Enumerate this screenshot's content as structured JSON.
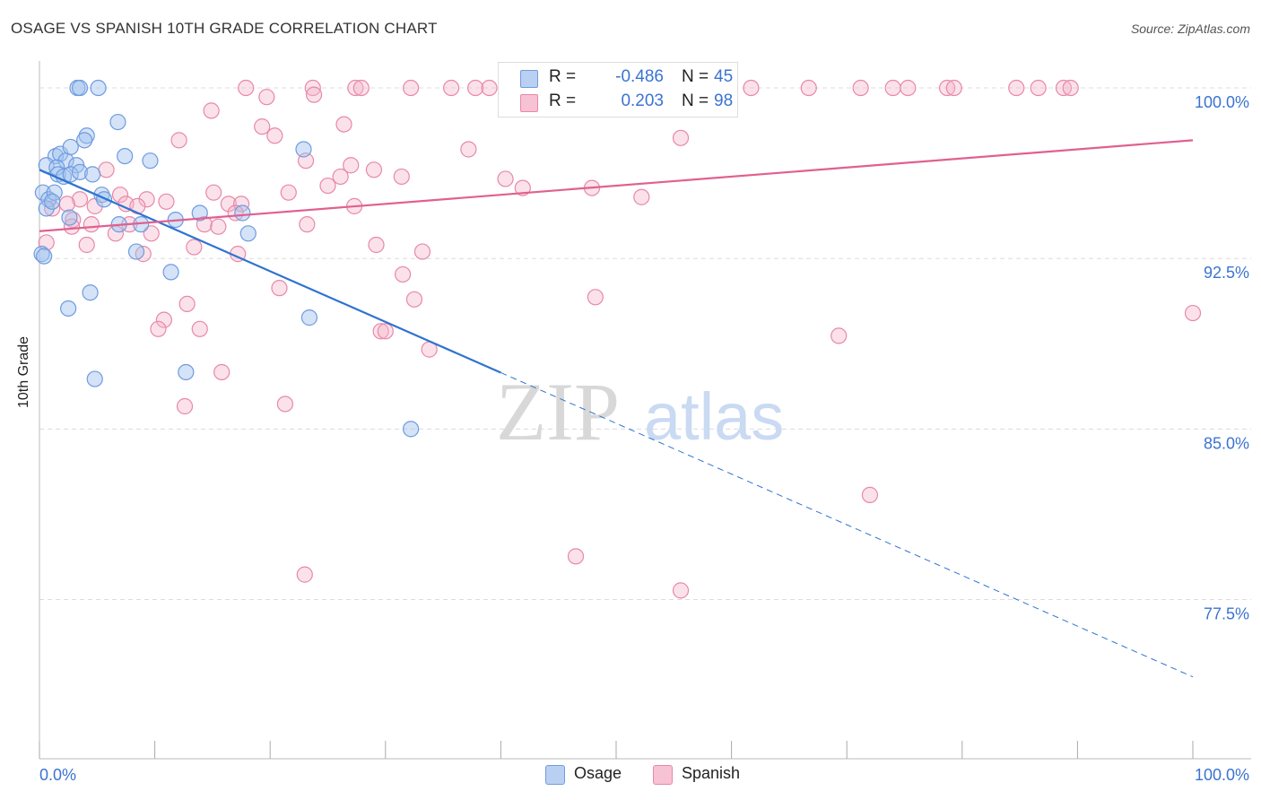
{
  "title": "OSAGE VS SPANISH 10TH GRADE CORRELATION CHART",
  "source": "Source: ZipAtlas.com",
  "watermark": {
    "zip": "ZIP",
    "atlas": "atlas"
  },
  "legend": {
    "rows": [
      {
        "r_label": "R =",
        "r_value": "-0.486",
        "n_label": "N =",
        "n_value": "45",
        "fill": "#b9d0f3",
        "stroke": "#6f9be0"
      },
      {
        "r_label": "R =",
        "r_value": "0.203",
        "n_label": "N =",
        "n_value": "98",
        "fill": "#f7c2d3",
        "stroke": "#e888a8"
      }
    ]
  },
  "bottom_legend": [
    {
      "label": "Osage",
      "fill": "#b9d0f3",
      "stroke": "#6f9be0"
    },
    {
      "label": "Spanish",
      "fill": "#f7c2d3",
      "stroke": "#e888a8"
    }
  ],
  "colors": {
    "osage_line": "#2f73d0",
    "spanish_line": "#e06090",
    "axis_tick_text": "#3b73d1",
    "grid": "#dcdcdc"
  },
  "chart_data": {
    "type": "scatter",
    "title": "OSAGE VS SPANISH 10TH GRADE CORRELATION CHART",
    "xlabel": "",
    "ylabel": "10th Grade",
    "xlim": [
      0,
      100
    ],
    "ylim": [
      70.5,
      101.5
    ],
    "x_tick_labels": [
      "0.0%",
      "100.0%"
    ],
    "y_ticks": [
      77.5,
      85.0,
      92.5,
      100.0
    ],
    "y_tick_labels": [
      "77.5%",
      "85.0%",
      "92.5%",
      "100.0%"
    ],
    "grid": true,
    "legend_position": "top-center",
    "series": [
      {
        "name": "Osage",
        "r": -0.486,
        "n": 45,
        "color": "#6f9be0",
        "trend": {
          "x0": 0,
          "y0": 96.4,
          "x1": 100,
          "y1": 74.1,
          "solid_until_x": 40
        },
        "points": [
          [
            3.3,
            100.0
          ],
          [
            3.5,
            100.0
          ],
          [
            5.1,
            100.0
          ],
          [
            6.8,
            98.5
          ],
          [
            4.1,
            97.9
          ],
          [
            3.9,
            97.7
          ],
          [
            1.4,
            97.0
          ],
          [
            1.8,
            97.1
          ],
          [
            2.3,
            96.8
          ],
          [
            2.7,
            97.4
          ],
          [
            7.4,
            97.0
          ],
          [
            0.6,
            96.6
          ],
          [
            1.5,
            96.5
          ],
          [
            3.2,
            96.6
          ],
          [
            9.6,
            96.8
          ],
          [
            1.6,
            96.2
          ],
          [
            2.1,
            96.1
          ],
          [
            2.7,
            96.2
          ],
          [
            3.5,
            96.3
          ],
          [
            4.6,
            96.2
          ],
          [
            0.3,
            95.4
          ],
          [
            0.8,
            95.1
          ],
          [
            1.3,
            95.4
          ],
          [
            5.4,
            95.3
          ],
          [
            5.6,
            95.1
          ],
          [
            0.6,
            94.7
          ],
          [
            2.6,
            94.3
          ],
          [
            11.8,
            94.2
          ],
          [
            13.9,
            94.5
          ],
          [
            17.6,
            94.5
          ],
          [
            6.9,
            94.0
          ],
          [
            8.8,
            94.0
          ],
          [
            18.1,
            93.6
          ],
          [
            0.2,
            92.7
          ],
          [
            8.4,
            92.8
          ],
          [
            11.4,
            91.9
          ],
          [
            4.4,
            91.0
          ],
          [
            2.5,
            90.3
          ],
          [
            23.4,
            89.9
          ],
          [
            12.7,
            87.5
          ],
          [
            4.8,
            87.2
          ],
          [
            32.2,
            85.0
          ],
          [
            22.9,
            97.3
          ],
          [
            1.1,
            95.0
          ],
          [
            0.4,
            92.6
          ]
        ]
      },
      {
        "name": "Spanish",
        "r": 0.203,
        "n": 98,
        "color": "#e888a8",
        "trend": {
          "x0": 0,
          "y0": 93.7,
          "x1": 100,
          "y1": 97.7
        },
        "points": [
          [
            17.9,
            100.0
          ],
          [
            23.7,
            100.0
          ],
          [
            27.4,
            100.0
          ],
          [
            27.9,
            100.0
          ],
          [
            32.2,
            100.0
          ],
          [
            35.7,
            100.0
          ],
          [
            37.8,
            100.0
          ],
          [
            39.0,
            100.0
          ],
          [
            41.1,
            100.0
          ],
          [
            42.9,
            100.0
          ],
          [
            44.6,
            100.0
          ],
          [
            46.6,
            100.0
          ],
          [
            47.5,
            100.0
          ],
          [
            51.9,
            100.0
          ],
          [
            56.4,
            100.0
          ],
          [
            61.7,
            100.0
          ],
          [
            66.7,
            100.0
          ],
          [
            71.2,
            100.0
          ],
          [
            74.0,
            100.0
          ],
          [
            75.3,
            100.0
          ],
          [
            78.7,
            100.0
          ],
          [
            79.3,
            100.0
          ],
          [
            84.7,
            100.0
          ],
          [
            86.6,
            100.0
          ],
          [
            88.8,
            100.0
          ],
          [
            89.4,
            100.0
          ],
          [
            23.8,
            99.7
          ],
          [
            19.7,
            99.6
          ],
          [
            51.8,
            99.6
          ],
          [
            14.9,
            99.0
          ],
          [
            19.3,
            98.3
          ],
          [
            26.4,
            98.4
          ],
          [
            20.4,
            97.9
          ],
          [
            12.1,
            97.7
          ],
          [
            55.6,
            97.8
          ],
          [
            37.2,
            97.3
          ],
          [
            23.1,
            96.8
          ],
          [
            27.0,
            96.6
          ],
          [
            29.0,
            96.4
          ],
          [
            5.8,
            96.4
          ],
          [
            26.1,
            96.1
          ],
          [
            31.4,
            96.1
          ],
          [
            25.0,
            95.7
          ],
          [
            40.4,
            96.0
          ],
          [
            41.9,
            95.6
          ],
          [
            47.9,
            95.6
          ],
          [
            15.1,
            95.4
          ],
          [
            21.6,
            95.4
          ],
          [
            7.0,
            95.3
          ],
          [
            3.5,
            95.1
          ],
          [
            9.3,
            95.1
          ],
          [
            11.0,
            95.0
          ],
          [
            52.2,
            95.2
          ],
          [
            2.4,
            94.9
          ],
          [
            7.5,
            94.9
          ],
          [
            8.5,
            94.8
          ],
          [
            16.4,
            94.9
          ],
          [
            17.5,
            94.9
          ],
          [
            27.3,
            94.8
          ],
          [
            1.1,
            94.7
          ],
          [
            4.8,
            94.8
          ],
          [
            17.0,
            94.5
          ],
          [
            2.9,
            94.2
          ],
          [
            4.5,
            94.0
          ],
          [
            7.8,
            94.0
          ],
          [
            14.3,
            94.0
          ],
          [
            15.5,
            93.9
          ],
          [
            23.2,
            94.0
          ],
          [
            2.8,
            93.9
          ],
          [
            6.6,
            93.6
          ],
          [
            9.7,
            93.6
          ],
          [
            0.6,
            93.2
          ],
          [
            4.1,
            93.1
          ],
          [
            13.4,
            93.0
          ],
          [
            29.2,
            93.1
          ],
          [
            33.2,
            92.8
          ],
          [
            17.2,
            92.7
          ],
          [
            9.0,
            92.7
          ],
          [
            31.5,
            91.8
          ],
          [
            20.8,
            91.2
          ],
          [
            32.5,
            90.7
          ],
          [
            48.2,
            90.8
          ],
          [
            12.8,
            90.5
          ],
          [
            10.8,
            89.8
          ],
          [
            13.9,
            89.4
          ],
          [
            10.3,
            89.4
          ],
          [
            29.6,
            89.3
          ],
          [
            30.0,
            89.3
          ],
          [
            69.3,
            89.1
          ],
          [
            33.8,
            88.5
          ],
          [
            15.8,
            87.5
          ],
          [
            12.6,
            86.0
          ],
          [
            21.3,
            86.1
          ],
          [
            100.0,
            90.1
          ],
          [
            72.0,
            82.1
          ],
          [
            46.5,
            79.4
          ],
          [
            23.0,
            78.6
          ],
          [
            55.6,
            77.9
          ]
        ]
      }
    ]
  }
}
